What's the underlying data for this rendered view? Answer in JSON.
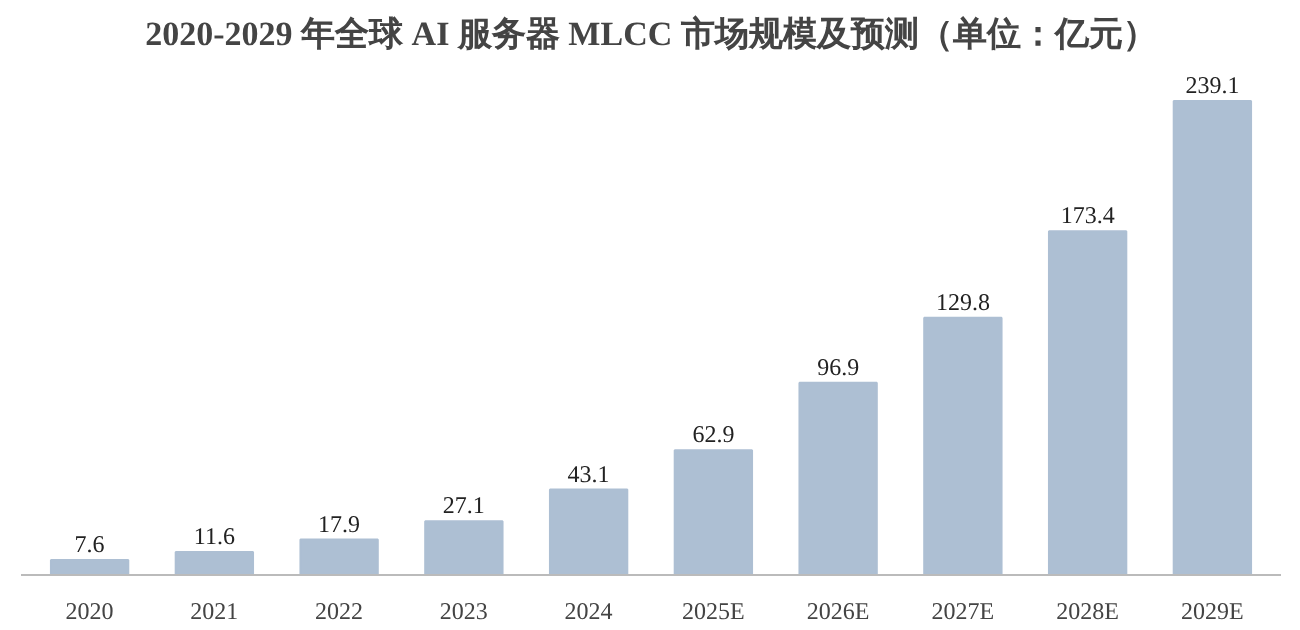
{
  "chart_data": {
    "type": "bar",
    "title": "2020-2029 年全球 AI 服务器 MLCC 市场规模及预测（单位：亿元）",
    "categories": [
      "2020",
      "2021",
      "2022",
      "2023",
      "2024",
      "2025E",
      "2026E",
      "2027E",
      "2028E",
      "2029E"
    ],
    "values": [
      7.6,
      11.6,
      17.9,
      27.1,
      43.1,
      62.9,
      96.9,
      129.8,
      173.4,
      239.1
    ],
    "color": "#adbfd3",
    "data_labels": true,
    "grid": false
  }
}
